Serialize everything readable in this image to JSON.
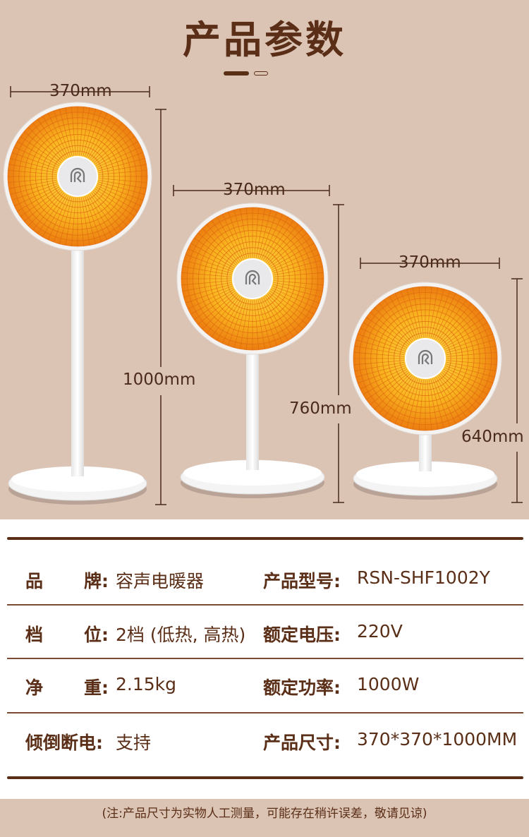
{
  "title": "产品参数",
  "dimensions": [
    {
      "width": "370mm",
      "height": "1000mm"
    },
    {
      "width": "370mm",
      "height": "760mm"
    },
    {
      "width": "370mm",
      "height": "640mm"
    }
  ],
  "colors": {
    "text": "#5a2e17",
    "background": "#dcc4b4",
    "heater": "#f7a21a"
  },
  "specs": [
    {
      "left_a": "品",
      "left_b": "牌:",
      "left_value": "容声电暖器",
      "right_label": "产品型号:",
      "right_value": "RSN-SHF1002Y"
    },
    {
      "left_a": "档",
      "left_b": "位:",
      "left_value": "2档 (低热, 高热)",
      "right_label": "额定电压:",
      "right_value": "220V"
    },
    {
      "left_a": "净",
      "left_b": "重:",
      "left_value": "2.15kg",
      "right_label": "额定功率:",
      "right_value": "1000W"
    },
    {
      "left_a": "倾倒断电:",
      "left_b": "",
      "left_value": "支持",
      "right_label": "产品尺寸:",
      "right_value": "370*370*1000MM"
    }
  ],
  "footnote": "(注:产品尺寸为实物人工测量，可能存在稍许误差，敬请见谅)"
}
